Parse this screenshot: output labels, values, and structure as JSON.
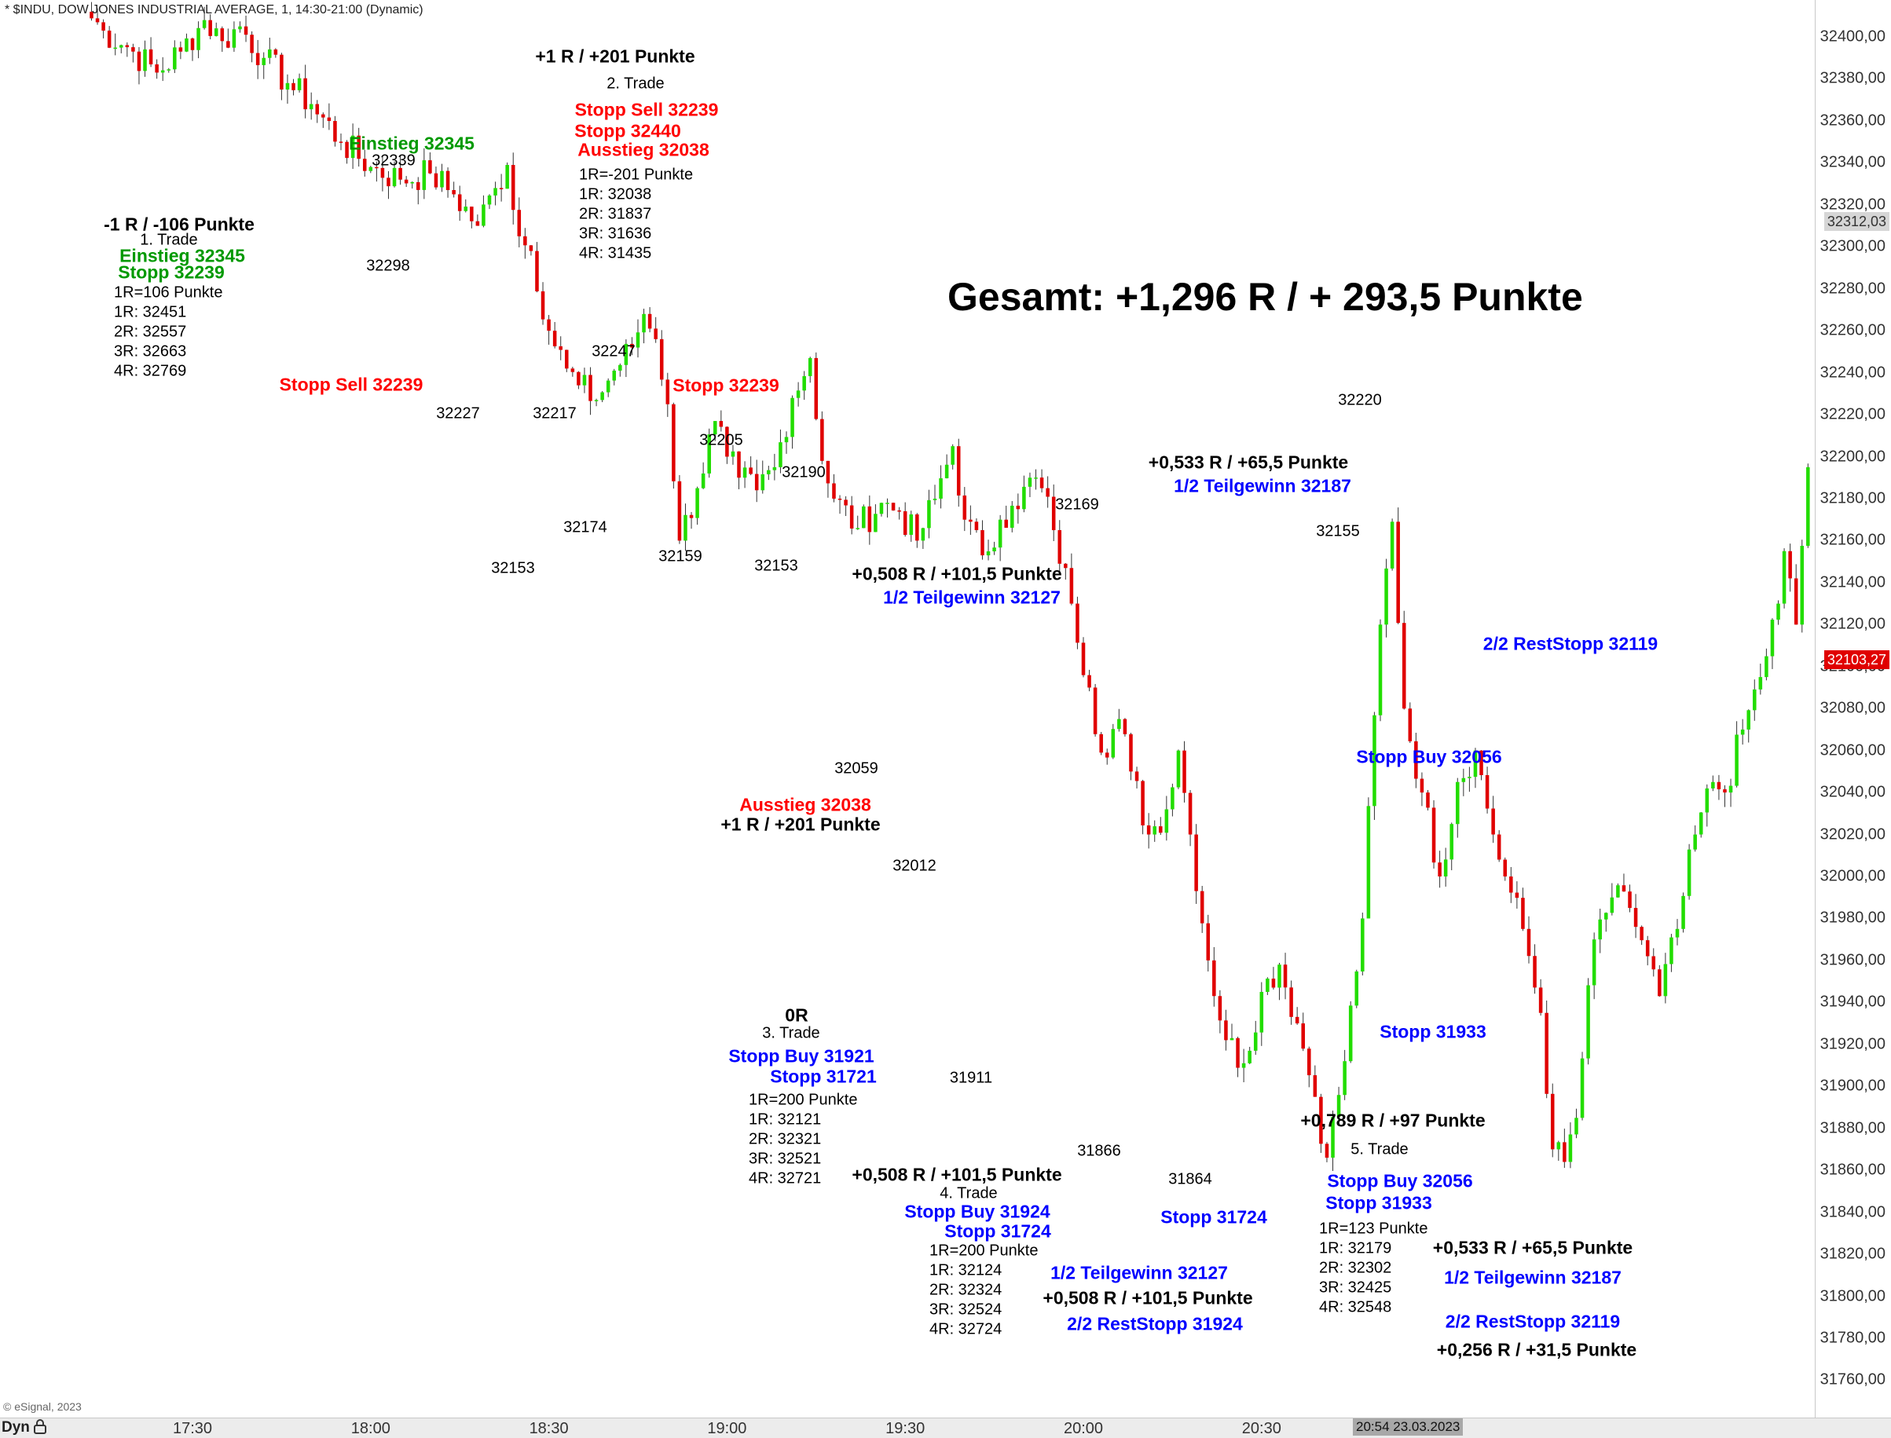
{
  "header": {
    "title": "* $INDU, DOW JONES INDUSTRIAL AVERAGE, 1, 14:30-21:00 (Dynamic)",
    "copyright": "© eSignal, 2023",
    "dyn_label": "Dyn"
  },
  "colors": {
    "up": "#22dd00",
    "down": "#e00000",
    "wick": "#333333",
    "black": "#000000",
    "red": "#ff0000",
    "green": "#009900",
    "blue": "#0000ff"
  },
  "chart_data": {
    "type": "candlestick",
    "title": "* $INDU, DOW JONES INDUSTRIAL AVERAGE, 1, 14:30-21:00 (Dynamic)",
    "y_ticks": [
      "32400,00",
      "32380,00",
      "32360,00",
      "32340,00",
      "32320,00",
      "32300,00",
      "32280,00",
      "32260,00",
      "32240,00",
      "32220,00",
      "32200,00",
      "32180,00",
      "32160,00",
      "32140,00",
      "32120,00",
      "32100,00",
      "32080,00",
      "32060,00",
      "32040,00",
      "32020,00",
      "32000,00",
      "31980,00",
      "31960,00",
      "31940,00",
      "31920,00",
      "31900,00",
      "31880,00",
      "31860,00",
      "31840,00",
      "31820,00",
      "31800,00",
      "31780,00",
      "31760,00"
    ],
    "x_ticks": [
      "17:30",
      "18:00",
      "18:30",
      "19:00",
      "19:30",
      "20:00",
      "20:30"
    ],
    "ylim": [
      31748,
      32418
    ],
    "last_price_label": "32103,27",
    "reference_price_label": "32312,03",
    "cursor_time_label": "20:54 23.03.2023",
    "price_path": [
      [
        "17:12",
        32412
      ],
      [
        "17:15",
        32403
      ],
      [
        "17:20",
        32393
      ],
      [
        "17:24",
        32383
      ],
      [
        "17:28",
        32393
      ],
      [
        "17:32",
        32408
      ],
      [
        "17:35",
        32398
      ],
      [
        "17:38",
        32405
      ],
      [
        "17:42",
        32390
      ],
      [
        "17:46",
        32378
      ],
      [
        "17:50",
        32368
      ],
      [
        "17:55",
        32350
      ],
      [
        "18:00",
        32338
      ],
      [
        "18:05",
        32332
      ],
      [
        "18:10",
        32335
      ],
      [
        "18:14",
        32325
      ],
      [
        "18:18",
        32310
      ],
      [
        "18:21",
        32328
      ],
      [
        "18:23",
        32339
      ],
      [
        "18:25",
        32305
      ],
      [
        "18:27",
        32298
      ],
      [
        "18:30",
        32260
      ],
      [
        "18:33",
        32242
      ],
      [
        "18:35",
        32234
      ],
      [
        "18:38",
        32227
      ],
      [
        "18:41",
        32241
      ],
      [
        "18:44",
        32252
      ],
      [
        "18:46",
        32268
      ],
      [
        "18:48",
        32256
      ],
      [
        "18:50",
        32225
      ],
      [
        "18:52",
        32160
      ],
      [
        "18:55",
        32185
      ],
      [
        "18:58",
        32217
      ],
      [
        "19:00",
        32200
      ],
      [
        "19:02",
        32190
      ],
      [
        "19:05",
        32184
      ],
      [
        "19:08",
        32195
      ],
      [
        "19:11",
        32228
      ],
      [
        "19:14",
        32247
      ],
      [
        "19:16",
        32198
      ],
      [
        "19:18",
        32180
      ],
      [
        "19:22",
        32166
      ],
      [
        "19:26",
        32178
      ],
      [
        "19:29",
        32174
      ],
      [
        "19:32",
        32160
      ],
      [
        "19:35",
        32180
      ],
      [
        "19:38",
        32205
      ],
      [
        "19:40",
        32170
      ],
      [
        "19:43",
        32153
      ],
      [
        "19:46",
        32170
      ],
      [
        "19:49",
        32175
      ],
      [
        "19:51",
        32190
      ],
      [
        "19:53",
        32185
      ],
      [
        "19:55",
        32165
      ],
      [
        "19:58",
        32130
      ],
      [
        "20:01",
        32090
      ],
      [
        "20:03",
        32059
      ],
      [
        "20:06",
        32075
      ],
      [
        "20:08",
        32050
      ],
      [
        "20:11",
        32020
      ],
      [
        "20:14",
        32032
      ],
      [
        "20:16",
        32060
      ],
      [
        "20:18",
        32020
      ],
      [
        "20:21",
        31960
      ],
      [
        "20:24",
        31922
      ],
      [
        "20:27",
        31911
      ],
      [
        "20:30",
        31945
      ],
      [
        "20:33",
        31958
      ],
      [
        "20:36",
        31930
      ],
      [
        "20:39",
        31895
      ],
      [
        "20:41",
        31866
      ],
      [
        "20:44",
        31912
      ],
      [
        "20:47",
        31980
      ],
      [
        "20:50",
        32120
      ],
      [
        "20:52",
        32169
      ],
      [
        "20:54",
        32080
      ],
      [
        "20:57",
        32040
      ],
      [
        "21:00",
        32000
      ],
      [
        "21:03",
        32045
      ],
      [
        "21:06",
        32060
      ],
      [
        "21:09",
        32020
      ],
      [
        "21:11",
        32000
      ],
      [
        "21:14",
        31975
      ],
      [
        "21:17",
        31935
      ],
      [
        "21:19",
        31870
      ],
      [
        "21:21",
        31864
      ],
      [
        "21:23",
        31885
      ],
      [
        "21:26",
        31970
      ],
      [
        "21:29",
        31990
      ],
      [
        "21:32",
        31985
      ],
      [
        "21:35",
        31962
      ],
      [
        "21:37",
        31943
      ],
      [
        "21:40",
        31975
      ],
      [
        "21:43",
        32020
      ],
      [
        "21:46",
        32045
      ],
      [
        "21:48",
        32040
      ],
      [
        "21:51",
        32070
      ],
      [
        "21:54",
        32095
      ],
      [
        "21:57",
        32130
      ],
      [
        "21:58",
        32155
      ],
      [
        "22:00",
        32120
      ],
      [
        "22:02",
        32195
      ],
      [
        "22:03",
        32220
      ],
      [
        "22:05",
        32170
      ],
      [
        "22:07",
        32150
      ],
      [
        "22:09",
        32178
      ],
      [
        "22:11",
        32165
      ],
      [
        "22:14",
        32175
      ],
      [
        "22:16",
        32103
      ]
    ]
  },
  "annotations": {
    "gesamt": "Gesamt: +1,296 R / + 293,5 Punkte",
    "t1_result": "-1 R / -106 Punkte",
    "t1_name": "1. Trade",
    "t1_entry": "Einstieg 32345",
    "t1_stop": "Stopp 32239",
    "t1_r": "1R=106 Punkte",
    "t1_1r": "1R: 32451",
    "t1_2r": "2R: 32557",
    "t1_3r": "3R: 32663",
    "t1_4r": "4R: 32769",
    "t1_entry_marker": "Einstieg 32345",
    "t1_stopp_sell": "Stopp Sell 32239",
    "t2_result": "+1 R / +201 Punkte",
    "t2_name": "2. Trade",
    "t2_stopp_sell": "Stopp Sell 32239",
    "t2_stopp": "Stopp 32440",
    "t2_exit": "Ausstieg 32038",
    "t2_r": "1R=-201 Punkte",
    "t2_1r": "1R: 32038",
    "t2_2r": "2R: 31837",
    "t2_3r": "3R: 31636",
    "t2_4r": "4R: 31435",
    "t2_stopp_marker": "Stopp 32239",
    "t2_exit_marker": "Ausstieg 32038",
    "t2_result_marker": "+1 R / +201 Punkte",
    "t3_result": "0R",
    "t3_name": "3. Trade",
    "t3_stopp_buy": "Stopp Buy 31921",
    "t3_stopp": "Stopp 31721",
    "t3_r": "1R=200 Punkte",
    "t3_1r": "1R: 32121",
    "t3_2r": "2R: 32321",
    "t3_3r": "3R: 32521",
    "t3_4r": "4R: 32721",
    "t4_result": "+0,508 R / +101,5 Punkte",
    "t4_name": "4. Trade",
    "t4_stopp_buy": "Stopp Buy 31924",
    "t4_stopp": "Stopp 31724",
    "t4_r": "1R=200 Punkte",
    "t4_1r": "1R: 32124",
    "t4_2r": "2R: 32324",
    "t4_3r": "3R: 32524",
    "t4_4r": "4R: 32724",
    "t4_half": "1/2 Teilgewinn 32127",
    "t4_half_result": "+0,508 R / +101,5 Punkte",
    "t4_rest": "2/2 RestStopp 31924",
    "t4_top_result": "+0,508 R / +101,5 Punkte",
    "t4_top_half": "1/2 Teilgewinn 32127",
    "t4_stopp_marker": "Stopp 31724",
    "t5_result": "+0,789 R / +97 Punkte",
    "t5_name": "5. Trade",
    "t5_stopp_buy": "Stopp Buy 32056",
    "t5_stopp": "Stopp 31933",
    "t5_r": "1R=123 Punkte",
    "t5_1r": "1R: 32179",
    "t5_2r": "2R: 32302",
    "t5_3r": "3R: 32425",
    "t5_4r": "4R: 32548",
    "t5_half_result": "+0,533 R / +65,5 Punkte",
    "t5_half": "1/2 Teilgewinn 32187",
    "t5_rest": "2/2 RestStopp 32119",
    "t5_rest_result": "+0,256 R / +31,5 Punkte",
    "t5_top_result": "+0,533 R / +65,5 Punkte",
    "t5_top_half": "1/2 Teilgewinn 32187",
    "t5_rest_marker": "2/2 RestStopp 32119",
    "t5_stopp_buy_marker": "Stopp Buy 32056",
    "t5_stopp_marker": "Stopp 31933"
  },
  "level_labels": [
    "32339",
    "32298",
    "32227",
    "32217",
    "32247",
    "32174",
    "32153",
    "32205",
    "32159",
    "32153",
    "32190",
    "32059",
    "32012",
    "31911",
    "31866",
    "32169",
    "31864",
    "32220",
    "32155"
  ]
}
